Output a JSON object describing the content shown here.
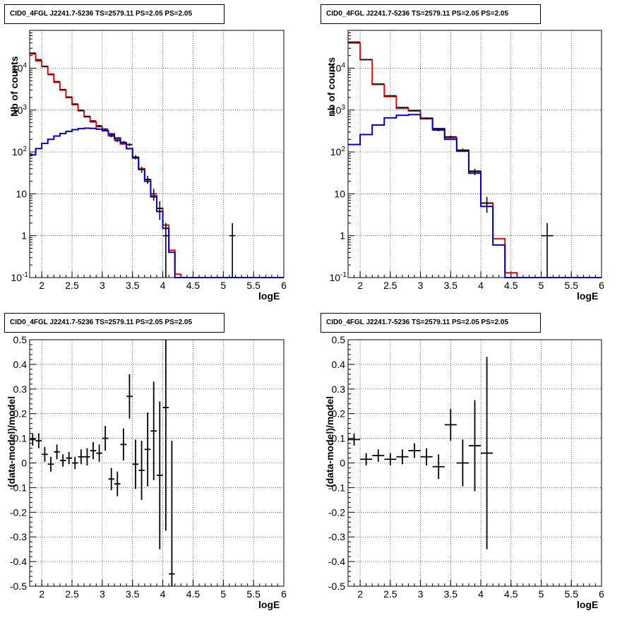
{
  "chart_data": [
    {
      "panel": "top-left",
      "type": "line",
      "title": "CID0_4FGL J2241.7-5236 TS=2579.11 PS=2.05 PS=2.05",
      "xlabel": "logE",
      "ylabel": "Nb of counts",
      "xlim": [
        1.8,
        6.0
      ],
      "ylim": [
        0.1,
        80000
      ],
      "yscale": "log",
      "grid": true,
      "xticks": [
        "2",
        "2.5",
        "3",
        "3.5",
        "4",
        "4.5",
        "5",
        "5.5",
        "6"
      ],
      "yticks": [
        "10^-1",
        "1",
        "10",
        "10^2",
        "10^3",
        "10^4"
      ],
      "edges": [
        1.8,
        1.9,
        2.0,
        2.1,
        2.2,
        2.3,
        2.4,
        2.5,
        2.6,
        2.7,
        2.8,
        2.9,
        3.0,
        3.1,
        3.2,
        3.3,
        3.4,
        3.5,
        3.6,
        3.7,
        3.8,
        3.9,
        4.0,
        4.1,
        4.2,
        4.3,
        4.4,
        4.5,
        4.6,
        4.7,
        4.8,
        4.9,
        5.0,
        5.1,
        5.2,
        5.3,
        5.4,
        5.5,
        5.6,
        5.7,
        5.8,
        5.9,
        6.0
      ],
      "series": [
        {
          "color": "#ff0000",
          "values": [
            22000,
            15000,
            11000,
            7200,
            4600,
            3000,
            2000,
            1350,
            960,
            690,
            520,
            400,
            320,
            250,
            200,
            155,
            120,
            75,
            40,
            22,
            9,
            4.5,
            1.8,
            0.45,
            0.12,
            0.1,
            0.1,
            0.1,
            0.1,
            0.1,
            0.1,
            0.1,
            0.1,
            0.1,
            0.1,
            0.1,
            0.1,
            0.1,
            0.1,
            0.1,
            0.1,
            0.1
          ]
        },
        {
          "color": "#0000cc",
          "values": [
            85,
            120,
            160,
            200,
            240,
            275,
            310,
            340,
            360,
            370,
            365,
            350,
            320,
            270,
            215,
            165,
            120,
            72,
            38,
            20,
            8.5,
            3.8,
            1.5,
            0.4,
            0.1,
            0.1,
            0.1,
            0.1,
            0.1,
            0.1,
            0.1,
            0.1,
            0.1,
            0.1,
            0.1,
            0.1,
            0.1,
            0.1,
            0.1,
            0.1,
            0.1,
            0.1
          ]
        },
        {
          "name": "data",
          "color": "#000000",
          "points": [
            {
              "x": 1.85,
              "y": 23000
            },
            {
              "x": 1.95,
              "y": 16000
            },
            {
              "x": 2.05,
              "y": 11000
            },
            {
              "x": 2.15,
              "y": 7000
            },
            {
              "x": 2.25,
              "y": 4800
            },
            {
              "x": 2.35,
              "y": 3100
            },
            {
              "x": 2.45,
              "y": 2050
            },
            {
              "x": 2.55,
              "y": 1400
            },
            {
              "x": 2.65,
              "y": 990
            },
            {
              "x": 2.75,
              "y": 710
            },
            {
              "x": 2.85,
              "y": 550
            },
            {
              "x": 2.95,
              "y": 420
            },
            {
              "x": 3.05,
              "y": 350
            },
            {
              "x": 3.15,
              "y": 240
            },
            {
              "x": 3.25,
              "y": 185
            },
            {
              "x": 3.35,
              "y": 170
            },
            {
              "x": 3.45,
              "y": 150
            },
            {
              "x": 3.55,
              "y": 75
            },
            {
              "x": 3.65,
              "y": 38
            },
            {
              "x": 3.75,
              "y": 22
            },
            {
              "x": 3.85,
              "y": 10
            },
            {
              "x": 3.95,
              "y": 4.5
            },
            {
              "x": 4.05,
              "y": 1
            },
            {
              "x": 5.15,
              "y": 1
            }
          ]
        }
      ]
    },
    {
      "panel": "top-right",
      "type": "line",
      "title": "CID0_4FGL J2241.7-5236 TS=2579.11 PS=2.05 PS=2.05",
      "xlabel": "logE",
      "ylabel": "nb of counts",
      "xlim": [
        1.8,
        6.0
      ],
      "ylim": [
        0.1,
        80000
      ],
      "yscale": "log",
      "grid": true,
      "xticks": [
        "2",
        "2.5",
        "3",
        "3.5",
        "4",
        "4.5",
        "5",
        "5.5",
        "6"
      ],
      "yticks": [
        "10^-1",
        "1",
        "10",
        "10^2",
        "10^3",
        "10^4"
      ],
      "edges": [
        1.8,
        2.0,
        2.2,
        2.4,
        2.6,
        2.8,
        3.0,
        3.2,
        3.4,
        3.6,
        3.8,
        4.0,
        4.2,
        4.4,
        4.6,
        4.8,
        5.0,
        5.2,
        5.4,
        5.6,
        5.8,
        6.0
      ],
      "series": [
        {
          "color": "#ff0000",
          "values": [
            40000,
            16000,
            4100,
            2100,
            1100,
            950,
            620,
            340,
            220,
            110,
            35,
            6,
            0.85,
            0.13,
            0.1,
            0.1,
            0.1,
            0.1,
            0.1,
            0.1,
            0.1
          ]
        },
        {
          "color": "#0000cc",
          "values": [
            150,
            260,
            440,
            650,
            750,
            780,
            640,
            360,
            200,
            105,
            31,
            5,
            0.6,
            0.1,
            0.1,
            0.1,
            0.1,
            0.1,
            0.1,
            0.1,
            0.1
          ]
        },
        {
          "name": "data",
          "color": "#000000",
          "points": [
            {
              "x": 1.9,
              "y": 42000
            },
            {
              "x": 2.1,
              "y": 16000
            },
            {
              "x": 2.3,
              "y": 4200
            },
            {
              "x": 2.5,
              "y": 2200
            },
            {
              "x": 2.7,
              "y": 1150
            },
            {
              "x": 2.9,
              "y": 980
            },
            {
              "x": 3.1,
              "y": 640
            },
            {
              "x": 3.3,
              "y": 330
            },
            {
              "x": 3.5,
              "y": 230
            },
            {
              "x": 3.7,
              "y": 110
            },
            {
              "x": 3.9,
              "y": 34
            },
            {
              "x": 4.1,
              "y": 6
            },
            {
              "x": 5.1,
              "y": 1
            }
          ]
        }
      ]
    },
    {
      "panel": "bottom-left",
      "type": "scatter",
      "title": "CID0_4FGL J2241.7-5236 TS=2579.11 PS=2.05 PS=2.05",
      "xlabel": "logE",
      "ylabel": "(data-model)/model",
      "xlim": [
        1.8,
        6.0
      ],
      "ylim": [
        -0.5,
        0.5
      ],
      "grid": true,
      "xticks": [
        "2",
        "2.5",
        "3",
        "3.5",
        "4",
        "4.5",
        "5",
        "5.5",
        "6"
      ],
      "yticks": [
        "-0.5",
        "-0.4",
        "-0.3",
        "-0.2",
        "-0.1",
        "0",
        "0.1",
        "0.2",
        "0.3",
        "0.4",
        "0.5"
      ],
      "xerr": 0.05,
      "points": [
        {
          "x": 1.85,
          "y": 0.095,
          "err": 0.025
        },
        {
          "x": 1.95,
          "y": 0.09,
          "err": 0.03
        },
        {
          "x": 2.05,
          "y": 0.035,
          "err": 0.03
        },
        {
          "x": 2.15,
          "y": -0.005,
          "err": 0.03
        },
        {
          "x": 2.25,
          "y": 0.045,
          "err": 0.03
        },
        {
          "x": 2.35,
          "y": 0.01,
          "err": 0.025
        },
        {
          "x": 2.45,
          "y": 0.02,
          "err": 0.025
        },
        {
          "x": 2.55,
          "y": 0.0,
          "err": 0.025
        },
        {
          "x": 2.65,
          "y": 0.025,
          "err": 0.03
        },
        {
          "x": 2.75,
          "y": 0.025,
          "err": 0.035
        },
        {
          "x": 2.85,
          "y": 0.05,
          "err": 0.035
        },
        {
          "x": 2.95,
          "y": 0.04,
          "err": 0.035
        },
        {
          "x": 3.05,
          "y": 0.1,
          "err": 0.05
        },
        {
          "x": 3.15,
          "y": -0.065,
          "err": 0.045
        },
        {
          "x": 3.25,
          "y": -0.085,
          "err": 0.05
        },
        {
          "x": 3.35,
          "y": 0.075,
          "err": 0.065
        },
        {
          "x": 3.45,
          "y": 0.27,
          "err": 0.09
        },
        {
          "x": 3.55,
          "y": -0.005,
          "err": 0.1
        },
        {
          "x": 3.65,
          "y": -0.03,
          "err": 0.12
        },
        {
          "x": 3.75,
          "y": 0.055,
          "err": 0.15
        },
        {
          "x": 3.85,
          "y": 0.13,
          "err": 0.2
        },
        {
          "x": 3.95,
          "y": -0.05,
          "err": 0.3
        },
        {
          "x": 4.05,
          "y": 0.225,
          "err": 0.5
        },
        {
          "x": 4.15,
          "y": -0.45,
          "err": 0.54
        }
      ]
    },
    {
      "panel": "bottom-right",
      "type": "scatter",
      "title": "CID0_4FGL J2241.7-5236 TS=2579.11 PS=2.05 PS=2.05",
      "xlabel": "logE",
      "ylabel": "(data-model)/model",
      "xlim": [
        1.8,
        6.0
      ],
      "ylim": [
        -0.5,
        0.5
      ],
      "grid": true,
      "xticks": [
        "2",
        "2.5",
        "3",
        "3.5",
        "4",
        "4.5",
        "5",
        "5.5",
        "6"
      ],
      "yticks": [
        "-0.5",
        "-0.4",
        "-0.3",
        "-0.2",
        "-0.1",
        "0",
        "0.1",
        "0.2",
        "0.3",
        "0.4",
        "0.5"
      ],
      "xerr": 0.1,
      "points": [
        {
          "x": 1.9,
          "y": 0.095,
          "err": 0.025
        },
        {
          "x": 2.1,
          "y": 0.015,
          "err": 0.025
        },
        {
          "x": 2.3,
          "y": 0.03,
          "err": 0.025
        },
        {
          "x": 2.5,
          "y": 0.015,
          "err": 0.025
        },
        {
          "x": 2.7,
          "y": 0.025,
          "err": 0.03
        },
        {
          "x": 2.9,
          "y": 0.05,
          "err": 0.03
        },
        {
          "x": 3.1,
          "y": 0.025,
          "err": 0.035
        },
        {
          "x": 3.3,
          "y": -0.015,
          "err": 0.05
        },
        {
          "x": 3.5,
          "y": 0.155,
          "err": 0.065
        },
        {
          "x": 3.7,
          "y": 0.0,
          "err": 0.095
        },
        {
          "x": 3.9,
          "y": 0.07,
          "err": 0.185
        },
        {
          "x": 4.1,
          "y": 0.04,
          "err": 0.39
        }
      ]
    }
  ]
}
